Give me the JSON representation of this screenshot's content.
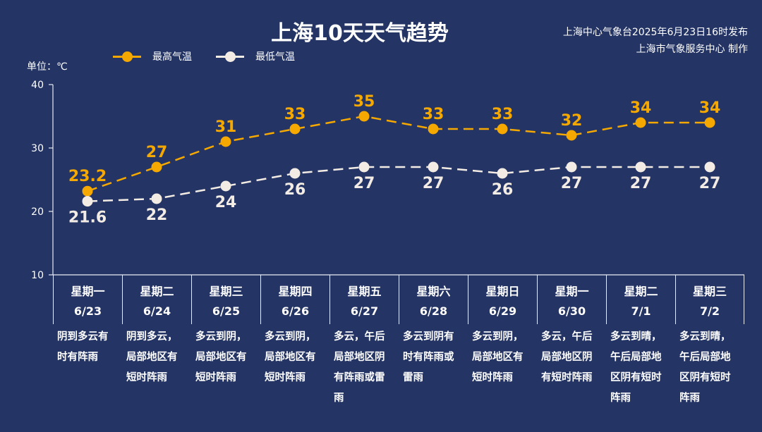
{
  "header": {
    "title": "上海10天天气趋势",
    "issuer_line1": "上海中心气象台2025年6月23日16时发布",
    "issuer_line2": "上海市气象服务中心 制作"
  },
  "legend": {
    "high_label": "最高气温",
    "low_label": "最低气温"
  },
  "unit_label": "单位：℃",
  "colors": {
    "background": "#243464",
    "high": "#f5a800",
    "low": "#f3ece4",
    "axis": "#e8ecf4"
  },
  "days": [
    {
      "weekday": "星期一",
      "date": "6/23",
      "desc": "阴到多云有时有阵雨"
    },
    {
      "weekday": "星期二",
      "date": "6/24",
      "desc": "阴到多云，局部地区有短时阵雨"
    },
    {
      "weekday": "星期三",
      "date": "6/25",
      "desc": "多云到阴，局部地区有短时阵雨"
    },
    {
      "weekday": "星期四",
      "date": "6/26",
      "desc": "多云到阴，局部地区有短时阵雨"
    },
    {
      "weekday": "星期五",
      "date": "6/27",
      "desc": "多云，午后局部地区阴有阵雨或雷雨"
    },
    {
      "weekday": "星期六",
      "date": "6/28",
      "desc": "多云到阴有时有阵雨或雷雨"
    },
    {
      "weekday": "星期日",
      "date": "6/29",
      "desc": "多云到阴，局部地区有短时阵雨"
    },
    {
      "weekday": "星期一",
      "date": "6/30",
      "desc": "多云，午后局部地区阴有短时阵雨"
    },
    {
      "weekday": "星期二",
      "date": "7/1",
      "desc": "多云到晴，午后局部地区阴有短时阵雨"
    },
    {
      "weekday": "星期三",
      "date": "7/2",
      "desc": "多云到晴，午后局部地区阴有短时阵雨"
    }
  ],
  "chart_data": {
    "type": "line",
    "title": "上海10天天气趋势",
    "xlabel": "",
    "ylabel": "单位：℃",
    "categories": [
      "星期一 6/23",
      "星期二 6/24",
      "星期三 6/25",
      "星期四 6/26",
      "星期五 6/27",
      "星期六 6/28",
      "星期日 6/29",
      "星期一 6/30",
      "星期二 7/1",
      "星期三 7/2"
    ],
    "series": [
      {
        "name": "最高气温",
        "color": "#f5a800",
        "values": [
          23.2,
          27,
          31,
          33,
          35,
          33,
          33,
          32,
          34,
          34
        ],
        "labels": [
          "23.2",
          "27",
          "31",
          "33",
          "35",
          "33",
          "33",
          "32",
          "34",
          "34"
        ]
      },
      {
        "name": "最低气温",
        "color": "#f3ece4",
        "values": [
          21.6,
          22,
          24,
          26,
          27,
          27,
          26,
          27,
          27,
          27
        ],
        "labels": [
          "21.6",
          "22",
          "24",
          "26",
          "27",
          "27",
          "26",
          "27",
          "27",
          "27"
        ]
      }
    ],
    "ylim": [
      10,
      40
    ],
    "yticks": [
      10,
      20,
      30,
      40
    ],
    "grid": false,
    "line_style": "dashed",
    "legend_position": "top-left"
  }
}
